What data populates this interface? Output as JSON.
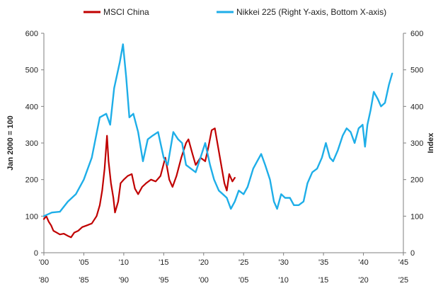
{
  "chart_data": {
    "type": "line",
    "title": "",
    "legend_placement": "top-center",
    "grid": false,
    "y_left": {
      "label": "Jan 2000 = 100",
      "lim": [
        0,
        600
      ],
      "ticks": [
        "0",
        "100",
        "200",
        "300",
        "400",
        "500",
        "600"
      ]
    },
    "y_right": {
      "label": "Index",
      "lim": [
        0,
        600
      ],
      "ticks": [
        "0",
        "100",
        "200",
        "300",
        "400",
        "500",
        "600"
      ]
    },
    "x_top": {
      "lim": [
        2000,
        2045
      ],
      "ticks": [
        "'00",
        "'05",
        "'10",
        "'15",
        "'20",
        "'25",
        "'30",
        "'35",
        "'40",
        "'45"
      ]
    },
    "x_bottom": {
      "lim": [
        1980,
        2025
      ],
      "ticks": [
        "'80",
        "'85",
        "'90",
        "'95",
        "'00",
        "'05",
        "'10",
        "'15",
        "'20",
        "'25"
      ]
    },
    "series": [
      {
        "name": "MSCI China",
        "color": "#c00000",
        "x_axis": "top",
        "y_axis": "left",
        "points": [
          [
            2000.0,
            92
          ],
          [
            2000.3,
            100
          ],
          [
            2000.6,
            85
          ],
          [
            2000.9,
            75
          ],
          [
            2001.2,
            60
          ],
          [
            2001.6,
            55
          ],
          [
            2002.0,
            50
          ],
          [
            2002.5,
            52
          ],
          [
            2003.0,
            46
          ],
          [
            2003.4,
            42
          ],
          [
            2003.8,
            55
          ],
          [
            2004.3,
            60
          ],
          [
            2004.8,
            70
          ],
          [
            2005.4,
            75
          ],
          [
            2006.0,
            80
          ],
          [
            2006.6,
            100
          ],
          [
            2007.0,
            130
          ],
          [
            2007.3,
            170
          ],
          [
            2007.6,
            230
          ],
          [
            2007.9,
            320
          ],
          [
            2008.1,
            250
          ],
          [
            2008.4,
            190
          ],
          [
            2008.7,
            150
          ],
          [
            2008.9,
            110
          ],
          [
            2009.3,
            140
          ],
          [
            2009.6,
            190
          ],
          [
            2010.0,
            200
          ],
          [
            2010.5,
            210
          ],
          [
            2011.0,
            215
          ],
          [
            2011.4,
            175
          ],
          [
            2011.8,
            160
          ],
          [
            2012.3,
            180
          ],
          [
            2012.8,
            190
          ],
          [
            2013.4,
            200
          ],
          [
            2014.0,
            195
          ],
          [
            2014.6,
            210
          ],
          [
            2015.2,
            260
          ],
          [
            2015.7,
            200
          ],
          [
            2016.1,
            180
          ],
          [
            2016.6,
            210
          ],
          [
            2017.2,
            260
          ],
          [
            2017.8,
            300
          ],
          [
            2018.1,
            310
          ],
          [
            2018.6,
            270
          ],
          [
            2019.0,
            240
          ],
          [
            2019.6,
            260
          ],
          [
            2020.2,
            250
          ],
          [
            2020.6,
            290
          ],
          [
            2021.0,
            335
          ],
          [
            2021.4,
            340
          ],
          [
            2021.8,
            290
          ],
          [
            2022.2,
            240
          ],
          [
            2022.6,
            190
          ],
          [
            2022.9,
            170
          ],
          [
            2023.2,
            215
          ],
          [
            2023.6,
            195
          ],
          [
            2023.9,
            205
          ]
        ]
      },
      {
        "name": "Nikkei 225 (Right Y-axis, Bottom X-axis)",
        "color": "#1eaee8",
        "x_axis": "bottom",
        "y_axis": "right",
        "points": [
          [
            1980.0,
            100
          ],
          [
            1981.0,
            110
          ],
          [
            1982.0,
            112
          ],
          [
            1983.0,
            140
          ],
          [
            1984.0,
            160
          ],
          [
            1985.0,
            200
          ],
          [
            1986.0,
            260
          ],
          [
            1987.0,
            370
          ],
          [
            1987.8,
            380
          ],
          [
            1988.3,
            350
          ],
          [
            1988.8,
            450
          ],
          [
            1989.5,
            520
          ],
          [
            1989.9,
            570
          ],
          [
            1990.3,
            480
          ],
          [
            1990.7,
            370
          ],
          [
            1991.2,
            380
          ],
          [
            1991.8,
            330
          ],
          [
            1992.4,
            250
          ],
          [
            1993.0,
            310
          ],
          [
            1993.6,
            320
          ],
          [
            1994.3,
            330
          ],
          [
            1995.0,
            260
          ],
          [
            1995.5,
            240
          ],
          [
            1996.2,
            330
          ],
          [
            1996.8,
            310
          ],
          [
            1997.3,
            300
          ],
          [
            1997.8,
            240
          ],
          [
            1998.4,
            230
          ],
          [
            1999.0,
            220
          ],
          [
            1999.6,
            260
          ],
          [
            2000.2,
            300
          ],
          [
            2000.8,
            240
          ],
          [
            2001.3,
            200
          ],
          [
            2001.9,
            170
          ],
          [
            2002.4,
            160
          ],
          [
            2002.9,
            150
          ],
          [
            2003.4,
            120
          ],
          [
            2003.9,
            140
          ],
          [
            2004.4,
            170
          ],
          [
            2005.0,
            160
          ],
          [
            2005.5,
            180
          ],
          [
            2006.2,
            230
          ],
          [
            2006.7,
            250
          ],
          [
            2007.2,
            270
          ],
          [
            2007.7,
            240
          ],
          [
            2008.3,
            200
          ],
          [
            2008.8,
            140
          ],
          [
            2009.2,
            120
          ],
          [
            2009.7,
            160
          ],
          [
            2010.2,
            150
          ],
          [
            2010.8,
            150
          ],
          [
            2011.3,
            130
          ],
          [
            2011.9,
            130
          ],
          [
            2012.5,
            140
          ],
          [
            2013.0,
            190
          ],
          [
            2013.6,
            220
          ],
          [
            2014.2,
            230
          ],
          [
            2014.8,
            260
          ],
          [
            2015.3,
            300
          ],
          [
            2015.8,
            260
          ],
          [
            2016.2,
            250
          ],
          [
            2016.8,
            280
          ],
          [
            2017.4,
            320
          ],
          [
            2017.9,
            340
          ],
          [
            2018.4,
            330
          ],
          [
            2018.9,
            300
          ],
          [
            2019.4,
            340
          ],
          [
            2019.9,
            350
          ],
          [
            2020.2,
            290
          ],
          [
            2020.5,
            350
          ],
          [
            2020.9,
            390
          ],
          [
            2021.3,
            440
          ],
          [
            2021.8,
            420
          ],
          [
            2022.2,
            400
          ],
          [
            2022.7,
            410
          ],
          [
            2023.2,
            460
          ],
          [
            2023.6,
            490
          ]
        ]
      }
    ]
  }
}
